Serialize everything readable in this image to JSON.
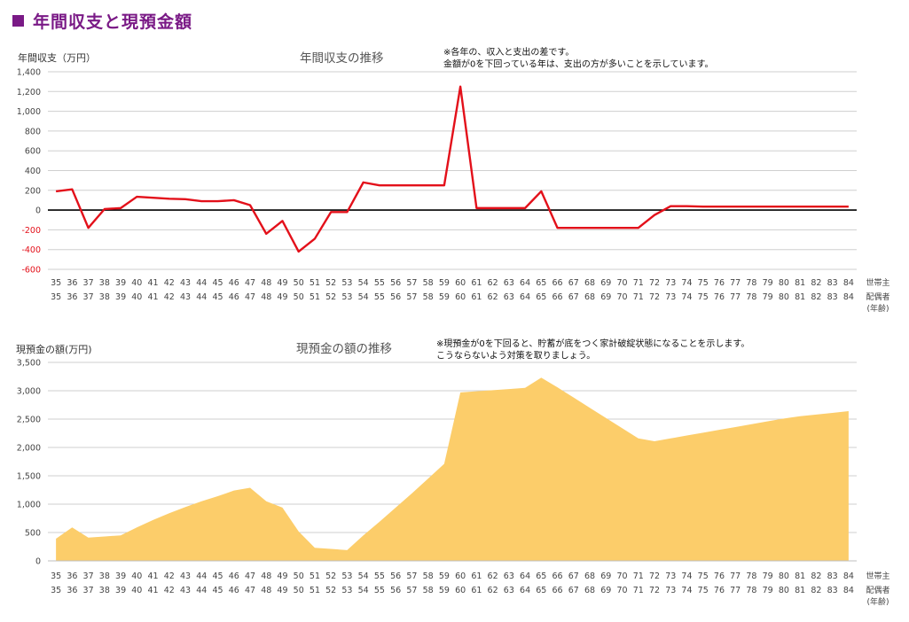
{
  "header": {
    "title": "年間収支と現預金額"
  },
  "colors": {
    "accent": "#7a1a86",
    "line": "#e3101a",
    "area": "#fccd6a",
    "negative_tick": "#e3101a"
  },
  "chart_data": [
    {
      "type": "line",
      "title": "年間収支の推移",
      "ylabel": "年間収支（万円）",
      "note_lines": [
        "※各年の、収入と支出の差です。",
        "金額が0を下回っている年は、支出の方が多いことを示しています。"
      ],
      "ylim": [
        -600,
        1400
      ],
      "yticks": [
        "1,400",
        "1,200",
        "1,000",
        "800",
        "600",
        "400",
        "200",
        "0",
        "-200",
        "-400",
        "-600"
      ],
      "x_row1": [
        "35",
        "36",
        "37",
        "38",
        "39",
        "40",
        "41",
        "42",
        "43",
        "44",
        "45",
        "46",
        "47",
        "48",
        "49",
        "50",
        "51",
        "52",
        "53",
        "54",
        "55",
        "56",
        "57",
        "58",
        "59",
        "60",
        "61",
        "62",
        "63",
        "64",
        "65",
        "66",
        "67",
        "68",
        "69",
        "70",
        "71",
        "72",
        "73",
        "74",
        "75",
        "76",
        "77",
        "78",
        "79",
        "80",
        "81",
        "82",
        "83",
        "84"
      ],
      "x_row2": [
        "35",
        "36",
        "37",
        "38",
        "39",
        "40",
        "41",
        "42",
        "43",
        "44",
        "45",
        "46",
        "47",
        "48",
        "49",
        "50",
        "51",
        "52",
        "53",
        "54",
        "55",
        "56",
        "57",
        "58",
        "59",
        "60",
        "61",
        "62",
        "63",
        "64",
        "65",
        "66",
        "67",
        "68",
        "69",
        "70",
        "71",
        "72",
        "73",
        "74",
        "75",
        "76",
        "77",
        "78",
        "79",
        "80",
        "81",
        "82",
        "83",
        "84"
      ],
      "axis_side_labels": [
        "世帯主",
        "配偶者",
        "(年齢)"
      ],
      "series": [
        {
          "values": [
            190,
            210,
            -180,
            10,
            20,
            135,
            125,
            115,
            110,
            90,
            90,
            100,
            50,
            -240,
            -110,
            -420,
            -290,
            -20,
            -20,
            280,
            250,
            250,
            250,
            250,
            250,
            1250,
            20,
            20,
            20,
            20,
            190,
            -180,
            -180,
            -180,
            -180,
            -180,
            -180,
            -50,
            40,
            40,
            35,
            35,
            35,
            35,
            35,
            35,
            35,
            35,
            35,
            35
          ]
        }
      ]
    },
    {
      "type": "area",
      "title": "現預金の額の推移",
      "ylabel": "現預金の額(万円)",
      "note_lines": [
        "※現預金が0を下回ると、貯蓄が底をつく家計破綻状態になることを示します。",
        "こうならないよう対策を取りましょう。"
      ],
      "ylim": [
        0,
        3500
      ],
      "yticks": [
        "3,500",
        "3,000",
        "2,500",
        "2,000",
        "1,500",
        "1,000",
        "500",
        "0"
      ],
      "x_row1": [
        "35",
        "36",
        "37",
        "38",
        "39",
        "40",
        "41",
        "42",
        "43",
        "44",
        "45",
        "46",
        "47",
        "48",
        "49",
        "50",
        "51",
        "52",
        "53",
        "54",
        "55",
        "56",
        "57",
        "58",
        "59",
        "60",
        "61",
        "62",
        "63",
        "64",
        "65",
        "66",
        "67",
        "68",
        "69",
        "70",
        "71",
        "72",
        "73",
        "74",
        "75",
        "76",
        "77",
        "78",
        "79",
        "80",
        "81",
        "82",
        "83",
        "84"
      ],
      "x_row2": [
        "35",
        "36",
        "37",
        "38",
        "39",
        "40",
        "41",
        "42",
        "43",
        "44",
        "45",
        "46",
        "47",
        "48",
        "49",
        "50",
        "51",
        "52",
        "53",
        "54",
        "55",
        "56",
        "57",
        "58",
        "59",
        "60",
        "61",
        "62",
        "63",
        "64",
        "65",
        "66",
        "67",
        "68",
        "69",
        "70",
        "71",
        "72",
        "73",
        "74",
        "75",
        "76",
        "77",
        "78",
        "79",
        "80",
        "81",
        "82",
        "83",
        "84"
      ],
      "axis_side_labels": [
        "世帯主",
        "配偶者",
        "(年齢)"
      ],
      "series": [
        {
          "values": [
            390,
            590,
            410,
            430,
            450,
            590,
            720,
            840,
            950,
            1050,
            1140,
            1240,
            1290,
            1050,
            940,
            520,
            230,
            210,
            190,
            450,
            690,
            940,
            1190,
            1450,
            1710,
            2970,
            2990,
            3010,
            3030,
            3050,
            3230,
            3060,
            2880,
            2700,
            2520,
            2340,
            2160,
            2110,
            2160,
            2210,
            2260,
            2310,
            2360,
            2410,
            2460,
            2510,
            2550,
            2580,
            2610,
            2640
          ]
        }
      ]
    }
  ]
}
